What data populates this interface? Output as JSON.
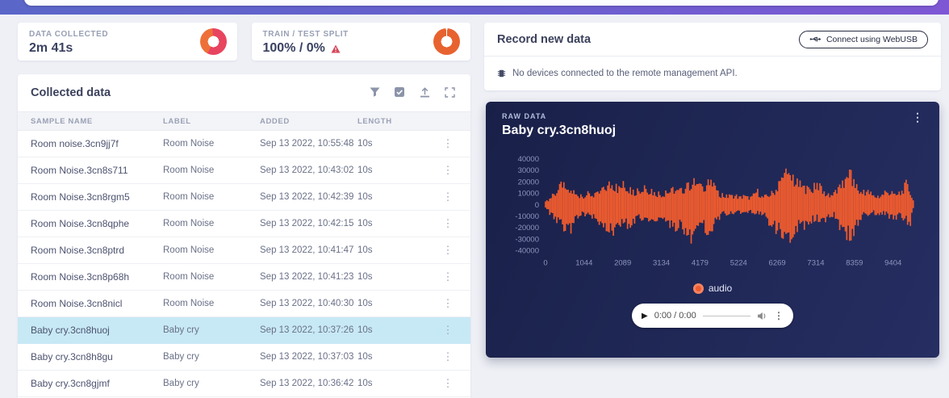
{
  "stats": [
    {
      "label": "DATA COLLECTED",
      "value": "2m 41s",
      "donut": {
        "type": "split",
        "colors": [
          "#e8445f",
          "#ee7038"
        ],
        "primary_pct": 59
      }
    },
    {
      "label": "TRAIN / TEST SPLIT",
      "value": "100% / 0%",
      "warning": true,
      "donut": {
        "type": "full",
        "colors": [
          "#e8622f"
        ]
      }
    }
  ],
  "collected": {
    "title": "Collected data",
    "toolbar_icons": [
      "filter-icon",
      "select-checkbox-icon",
      "upload-icon",
      "expand-icon"
    ],
    "columns": [
      "SAMPLE NAME",
      "LABEL",
      "ADDED",
      "LENGTH"
    ],
    "rows": [
      {
        "name": "Room noise.3cn9jj7f",
        "label": "Room Noise",
        "added": "Sep 13 2022, 10:55:48",
        "length": "10s",
        "selected": false
      },
      {
        "name": "Room Noise.3cn8s711",
        "label": "Room Noise",
        "added": "Sep 13 2022, 10:43:02",
        "length": "10s",
        "selected": false
      },
      {
        "name": "Room Noise.3cn8rgm5",
        "label": "Room Noise",
        "added": "Sep 13 2022, 10:42:39",
        "length": "10s",
        "selected": false
      },
      {
        "name": "Room Noise.3cn8qphe",
        "label": "Room Noise",
        "added": "Sep 13 2022, 10:42:15",
        "length": "10s",
        "selected": false
      },
      {
        "name": "Room Noise.3cn8ptrd",
        "label": "Room Noise",
        "added": "Sep 13 2022, 10:41:47",
        "length": "10s",
        "selected": false
      },
      {
        "name": "Room Noise.3cn8p68h",
        "label": "Room Noise",
        "added": "Sep 13 2022, 10:41:23",
        "length": "10s",
        "selected": false
      },
      {
        "name": "Room Noise.3cn8nicl",
        "label": "Room Noise",
        "added": "Sep 13 2022, 10:40:30",
        "length": "10s",
        "selected": false
      },
      {
        "name": "Baby cry.3cn8huoj",
        "label": "Baby cry",
        "added": "Sep 13 2022, 10:37:26",
        "length": "10s",
        "selected": true
      },
      {
        "name": "Baby cry.3cn8h8gu",
        "label": "Baby cry",
        "added": "Sep 13 2022, 10:37:03",
        "length": "10s",
        "selected": false
      },
      {
        "name": "Baby cry.3cn8gjmf",
        "label": "Baby cry",
        "added": "Sep 13 2022, 10:36:42",
        "length": "10s",
        "selected": false
      }
    ]
  },
  "record": {
    "title": "Record new data",
    "connect_button": "Connect using WebUSB",
    "no_devices": "No devices connected to the remote management API."
  },
  "raw": {
    "eyebrow": "RAW DATA",
    "title": "Baby cry.3cn8huoj",
    "legend": "audio",
    "player_time": "0:00 / 0:00"
  },
  "chart_data": {
    "type": "line",
    "subtype": "audio-waveform",
    "title": "Baby cry.3cn8huoj",
    "xlabel": "",
    "ylabel": "",
    "legend": [
      "audio"
    ],
    "legend_position": "bottom",
    "grid": false,
    "series_color": "#ef5b2e",
    "x_ticks": [
      0,
      1044,
      2089,
      3134,
      4179,
      5224,
      6269,
      7314,
      8359,
      9404
    ],
    "y_ticks": [
      40000,
      30000,
      20000,
      10000,
      0,
      -10000,
      -20000,
      -30000,
      -40000
    ],
    "xlim": [
      0,
      10000
    ],
    "ylim": [
      -45000,
      45000
    ],
    "envelope": [
      [
        0,
        3000,
        -3000
      ],
      [
        120,
        7000,
        -9000
      ],
      [
        250,
        12000,
        -15000
      ],
      [
        380,
        18000,
        -17000
      ],
      [
        450,
        25000,
        -21000
      ],
      [
        560,
        13000,
        -26000
      ],
      [
        700,
        15000,
        -25000
      ],
      [
        820,
        11000,
        -13000
      ],
      [
        980,
        9000,
        -10000
      ],
      [
        1150,
        12000,
        -10000
      ],
      [
        1320,
        10000,
        -13000
      ],
      [
        1500,
        14000,
        -19000
      ],
      [
        1650,
        19000,
        -23000
      ],
      [
        1800,
        22000,
        -29000
      ],
      [
        1960,
        17000,
        -20000
      ],
      [
        2100,
        21000,
        -18000
      ],
      [
        2260,
        16000,
        -22000
      ],
      [
        2420,
        14000,
        -16000
      ],
      [
        2580,
        15000,
        -14000
      ],
      [
        2720,
        18000,
        -13000
      ],
      [
        2870,
        14000,
        -16000
      ],
      [
        3020,
        12000,
        -14000
      ],
      [
        3170,
        11000,
        -12000
      ],
      [
        3330,
        14000,
        -18000
      ],
      [
        3470,
        16000,
        -26000
      ],
      [
        3620,
        14000,
        -20000
      ],
      [
        3780,
        18000,
        -27000
      ],
      [
        3930,
        22000,
        -35000
      ],
      [
        4060,
        24000,
        -21000
      ],
      [
        4200,
        18000,
        -16000
      ],
      [
        4360,
        22000,
        -27000
      ],
      [
        4500,
        23000,
        -24000
      ],
      [
        4650,
        13000,
        -15000
      ],
      [
        4800,
        10000,
        -10000
      ],
      [
        4950,
        9000,
        -9000
      ],
      [
        5100,
        10000,
        -8000
      ],
      [
        5250,
        8000,
        -8000
      ],
      [
        5400,
        9000,
        -7000
      ],
      [
        5560,
        7000,
        -7000
      ],
      [
        5720,
        15000,
        -9000
      ],
      [
        5870,
        8000,
        -9000
      ],
      [
        6020,
        10000,
        -17000
      ],
      [
        6160,
        13000,
        -23000
      ],
      [
        6320,
        21000,
        -28000
      ],
      [
        6460,
        33000,
        -30000
      ],
      [
        6600,
        29000,
        -34000
      ],
      [
        6750,
        25000,
        -27000
      ],
      [
        6900,
        21000,
        -19000
      ],
      [
        7050,
        17000,
        -23000
      ],
      [
        7200,
        15000,
        -16000
      ],
      [
        7350,
        24000,
        -14000
      ],
      [
        7500,
        14000,
        -18000
      ],
      [
        7660,
        10000,
        -12000
      ],
      [
        7820,
        12000,
        -10000
      ],
      [
        7960,
        18000,
        -22000
      ],
      [
        8100,
        24000,
        -29000
      ],
      [
        8250,
        32000,
        -34000
      ],
      [
        8400,
        19000,
        -23000
      ],
      [
        8550,
        12000,
        -12000
      ],
      [
        8700,
        15000,
        -10000
      ],
      [
        8850,
        10000,
        -8000
      ],
      [
        9000,
        8000,
        -10000
      ],
      [
        9150,
        12000,
        -8000
      ],
      [
        9300,
        14000,
        -12000
      ],
      [
        9450,
        10000,
        -14000
      ],
      [
        9600,
        12000,
        -10000
      ],
      [
        9760,
        22000,
        -17000
      ],
      [
        9870,
        14000,
        -19000
      ],
      [
        9950,
        4000,
        -4000
      ]
    ]
  }
}
